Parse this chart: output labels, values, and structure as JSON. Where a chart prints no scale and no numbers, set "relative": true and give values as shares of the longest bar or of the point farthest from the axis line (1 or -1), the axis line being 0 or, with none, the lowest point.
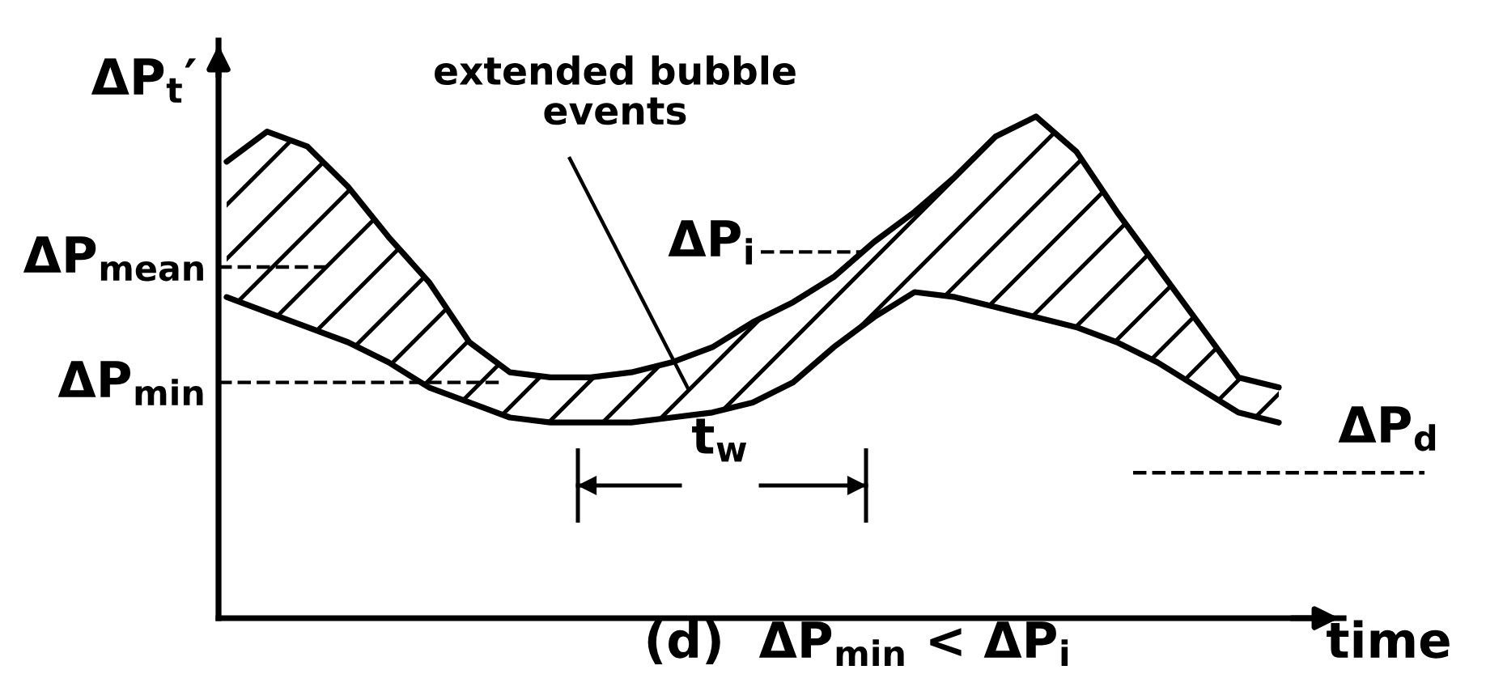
{
  "chart_data": {
    "type": "line",
    "relative": true,
    "categories": [
      null,
      null,
      null,
      null,
      null,
      null,
      null,
      null,
      null,
      null,
      null,
      null,
      null,
      null,
      null,
      null,
      null,
      null,
      null,
      null,
      null,
      null,
      null,
      null,
      null,
      null,
      null
    ],
    "ylabel": "ΔP$_{t}$′",
    "xlabel": "time",
    "line_style": "solid",
    "series": [
      {
        "color": "#000000",
        "values": [
          0.64,
          0.61,
          0.58,
          0.55,
          0.51,
          0.46,
          0.43,
          0.4,
          0.39,
          0.39,
          0.39,
          0.4,
          0.41,
          0.43,
          0.47,
          0.54,
          0.6,
          0.65,
          0.64,
          0.62,
          0.6,
          0.58,
          0.55,
          0.51,
          0.46,
          0.41,
          0.39
        ]
      },
      {
        "color": "#000000",
        "values": [
          0.91,
          0.97,
          0.94,
          0.86,
          0.76,
          0.67,
          0.55,
          0.49,
          0.48,
          0.48,
          0.49,
          0.51,
          0.54,
          0.59,
          0.63,
          0.68,
          0.75,
          0.81,
          0.88,
          0.96,
          1.0,
          0.93,
          0.81,
          0.7,
          0.59,
          0.48,
          0.46
        ],
        "lower": [
          0.64,
          0.61,
          0.58,
          0.55,
          0.51,
          0.46,
          0.43,
          0.4,
          0.39,
          0.39,
          0.39,
          0.4,
          0.41,
          0.43,
          0.47,
          0.54,
          0.6,
          0.65,
          0.64,
          0.62,
          0.6,
          0.58,
          0.55,
          0.51,
          0.46,
          0.41,
          0.39
        ],
        "upper": [
          0.91,
          0.97,
          0.94,
          0.86,
          0.76,
          0.67,
          0.55,
          0.49,
          0.48,
          0.48,
          0.49,
          0.51,
          0.54,
          0.59,
          0.63,
          0.68,
          0.75,
          0.81,
          0.88,
          0.96,
          1.0,
          0.93,
          0.81,
          0.7,
          0.59,
          0.48,
          0.46
        ]
      }
    ],
    "ref_lines": [
      {
        "axis": "y",
        "value": 0.7,
        "label": "ΔP$_{mean}$",
        "line_style": "dashed"
      },
      {
        "axis": "y",
        "value": 0.47,
        "label": "ΔP$_{min}$",
        "line_style": "dashed"
      },
      {
        "axis": "y",
        "value": 0.73,
        "label": "ΔP$_{i}$",
        "line_style": "dashed"
      },
      {
        "axis": "y",
        "value": 0.29,
        "label": "ΔP$_{d}$",
        "line_style": "dashed"
      }
    ],
    "annotations": [
      "extended bubble\nevents",
      "t$_{w}$",
      "(d)  ΔP$_{min}$ < ΔP$_{i}$"
    ]
  }
}
